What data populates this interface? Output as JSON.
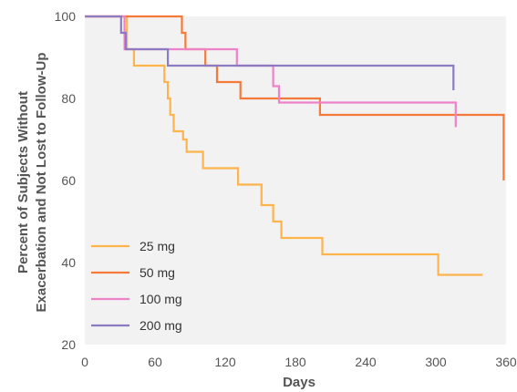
{
  "chart_data": {
    "type": "line",
    "step": true,
    "xlabel": "Days",
    "ylabel": [
      "Percent of Subjects Without",
      "Exacerbation and Not Lost to Follow-Up"
    ],
    "xlim": [
      0,
      360
    ],
    "ylim": [
      20,
      100
    ],
    "xticks": [
      0,
      60,
      120,
      180,
      240,
      300,
      360
    ],
    "yticks": [
      20,
      40,
      60,
      80,
      100
    ],
    "grid": false,
    "legend_position": "bottom-left",
    "series": [
      {
        "name": "25 mg",
        "color": "#FDB44B",
        "points": [
          [
            0,
            100
          ],
          [
            36,
            100
          ],
          [
            36,
            92
          ],
          [
            42,
            92
          ],
          [
            42,
            88
          ],
          [
            68,
            88
          ],
          [
            68,
            84
          ],
          [
            71,
            84
          ],
          [
            71,
            80
          ],
          [
            73,
            80
          ],
          [
            73,
            76
          ],
          [
            76,
            76
          ],
          [
            76,
            72
          ],
          [
            84,
            72
          ],
          [
            84,
            70
          ],
          [
            87,
            70
          ],
          [
            87,
            67
          ],
          [
            101,
            67
          ],
          [
            101,
            63
          ],
          [
            131,
            63
          ],
          [
            131,
            59
          ],
          [
            151,
            59
          ],
          [
            151,
            54
          ],
          [
            161,
            54
          ],
          [
            161,
            50
          ],
          [
            168,
            50
          ],
          [
            168,
            46
          ],
          [
            203,
            46
          ],
          [
            203,
            42
          ],
          [
            302,
            42
          ],
          [
            302,
            37
          ],
          [
            340,
            37
          ]
        ]
      },
      {
        "name": "50 mg",
        "color": "#F47A3A",
        "points": [
          [
            0,
            100
          ],
          [
            83,
            100
          ],
          [
            83,
            96
          ],
          [
            86,
            96
          ],
          [
            86,
            92
          ],
          [
            103,
            92
          ],
          [
            103,
            88
          ],
          [
            113,
            88
          ],
          [
            113,
            84
          ],
          [
            133,
            84
          ],
          [
            133,
            80
          ],
          [
            201,
            80
          ],
          [
            201,
            76
          ],
          [
            358,
            76
          ],
          [
            358,
            60
          ]
        ]
      },
      {
        "name": "100 mg",
        "color": "#EE82C8",
        "points": [
          [
            0,
            100
          ],
          [
            34,
            100
          ],
          [
            34,
            92
          ],
          [
            130,
            92
          ],
          [
            130,
            88
          ],
          [
            161,
            88
          ],
          [
            161,
            83
          ],
          [
            166,
            83
          ],
          [
            166,
            79
          ],
          [
            317,
            79
          ],
          [
            317,
            73
          ]
        ]
      },
      {
        "name": "200 mg",
        "color": "#8C7BC2",
        "points": [
          [
            0,
            100
          ],
          [
            31,
            100
          ],
          [
            31,
            96
          ],
          [
            35,
            96
          ],
          [
            35,
            92
          ],
          [
            71,
            92
          ],
          [
            71,
            88
          ],
          [
            315,
            88
          ],
          [
            315,
            82
          ]
        ]
      }
    ]
  }
}
